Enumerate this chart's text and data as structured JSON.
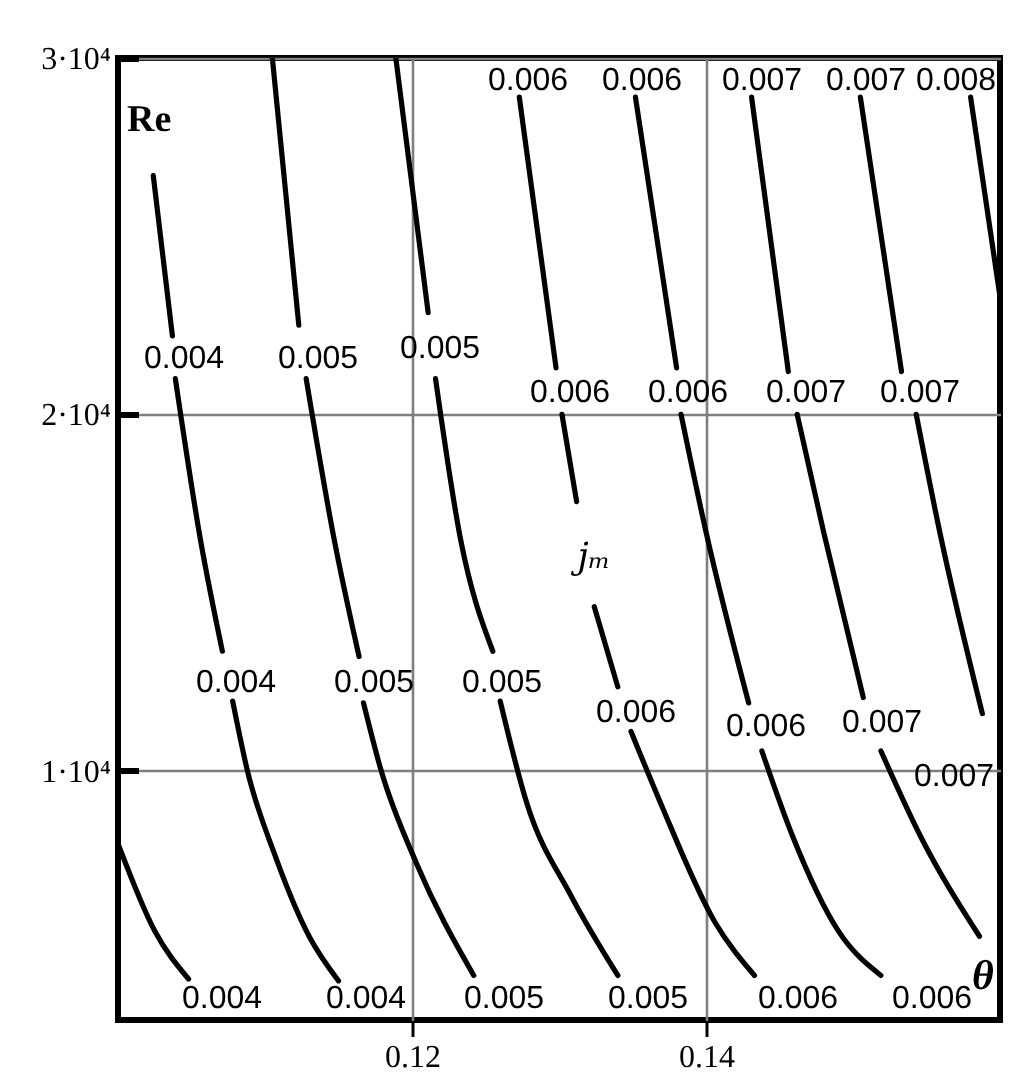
{
  "chart_data": {
    "type": "line",
    "xlabel": "θ",
    "ylabel": "Re",
    "xlim": [
      0.1,
      0.16
    ],
    "ylim": [
      3000,
      30000
    ],
    "xticks": [
      0.12,
      0.14
    ],
    "yticks": [
      {
        "value": 10000,
        "label": "1·10⁴"
      },
      {
        "value": 20000,
        "label": "2·10⁴"
      },
      {
        "value": 30000,
        "label": "3·10⁴"
      }
    ],
    "grid": true,
    "series": [
      {
        "color": "#000000",
        "x": [
          0.1,
          0.1025,
          0.1048
        ],
        "values": [
          7950,
          5500,
          4150
        ]
      },
      {
        "color": "#000000",
        "x": [
          0.1024,
          0.1037,
          0.1038,
          0.1039,
          0.1056,
          0.1071,
          0.1074,
          0.1078,
          0.1088,
          0.1107,
          0.113,
          0.115
        ],
        "values": [
          26700,
          22200,
          null,
          21000,
          16500,
          13350,
          null,
          11950,
          10000,
          7600,
          5350,
          4100
        ]
      },
      {
        "color": "#000000",
        "x": [
          0.1105,
          0.1123,
          0.1125,
          0.1128,
          0.1147,
          0.1164,
          0.1165,
          0.1167,
          0.1179,
          0.1203,
          0.1242
        ],
        "values": [
          30000,
          22500,
          null,
          21000,
          16500,
          13200,
          null,
          11900,
          10000,
          7400,
          4250
        ]
      },
      {
        "color": "#000000",
        "x": [
          0.1189,
          0.1211,
          0.1213,
          0.1216,
          0.1233,
          0.1255,
          0.1257,
          0.126,
          0.1278,
          0.1308,
          0.134
        ],
        "values": [
          30000,
          22850,
          null,
          21000,
          16500,
          13350,
          null,
          11950,
          9100,
          6500,
          4250
        ]
      },
      {
        "color": "#000000",
        "x": [
          0.1273,
          0.1298,
          0.13,
          0.1302,
          0.1312,
          0.1318,
          0.1324,
          0.134,
          0.1345,
          0.1349,
          0.1369,
          0.1406,
          0.1433
        ],
        "values": [
          28900,
          21300,
          null,
          20000,
          17550,
          null,
          14600,
          12350,
          null,
          11100,
          9100,
          5750,
          4250
        ]
      },
      {
        "color": "#000000",
        "x": [
          0.1352,
          0.138,
          0.1381,
          0.1383,
          0.14,
          0.1429,
          0.1433,
          0.1438,
          0.1459,
          0.149,
          0.1519
        ],
        "values": [
          28900,
          21300,
          null,
          20000,
          16700,
          11900,
          null,
          10550,
          8150,
          5500,
          4250
        ]
      },
      {
        "color": "#000000",
        "x": [
          0.1431,
          0.1456,
          0.1459,
          0.1462,
          0.148,
          0.1507,
          0.1513,
          0.1519,
          0.1546,
          0.1586
        ],
        "values": [
          28900,
          21200,
          null,
          20000,
          16700,
          12050,
          null,
          10550,
          8150,
          5350
        ]
      },
      {
        "color": "#000000",
        "x": [
          0.1505,
          0.1533,
          0.1538,
          0.1543,
          0.1559,
          0.1588
        ],
        "values": [
          28900,
          21200,
          null,
          20000,
          16700,
          11600
        ]
      },
      {
        "color": "#000000",
        "x": [
          0.158,
          0.16
        ],
        "values": [
          28900,
          23300
        ]
      }
    ],
    "annotations": [
      "0.006",
      "0.006",
      "0.007",
      "0.007",
      "0.008",
      "0.004",
      "0.005",
      "0.005",
      "0.006",
      "0.006",
      "0.007",
      "0.007",
      "0.004",
      "0.005",
      "0.005",
      "0.006",
      "0.006",
      "0.007",
      "0.007",
      "0.004",
      "0.004",
      "0.005",
      "0.005",
      "0.006",
      "0.006",
      "jₘ"
    ]
  }
}
